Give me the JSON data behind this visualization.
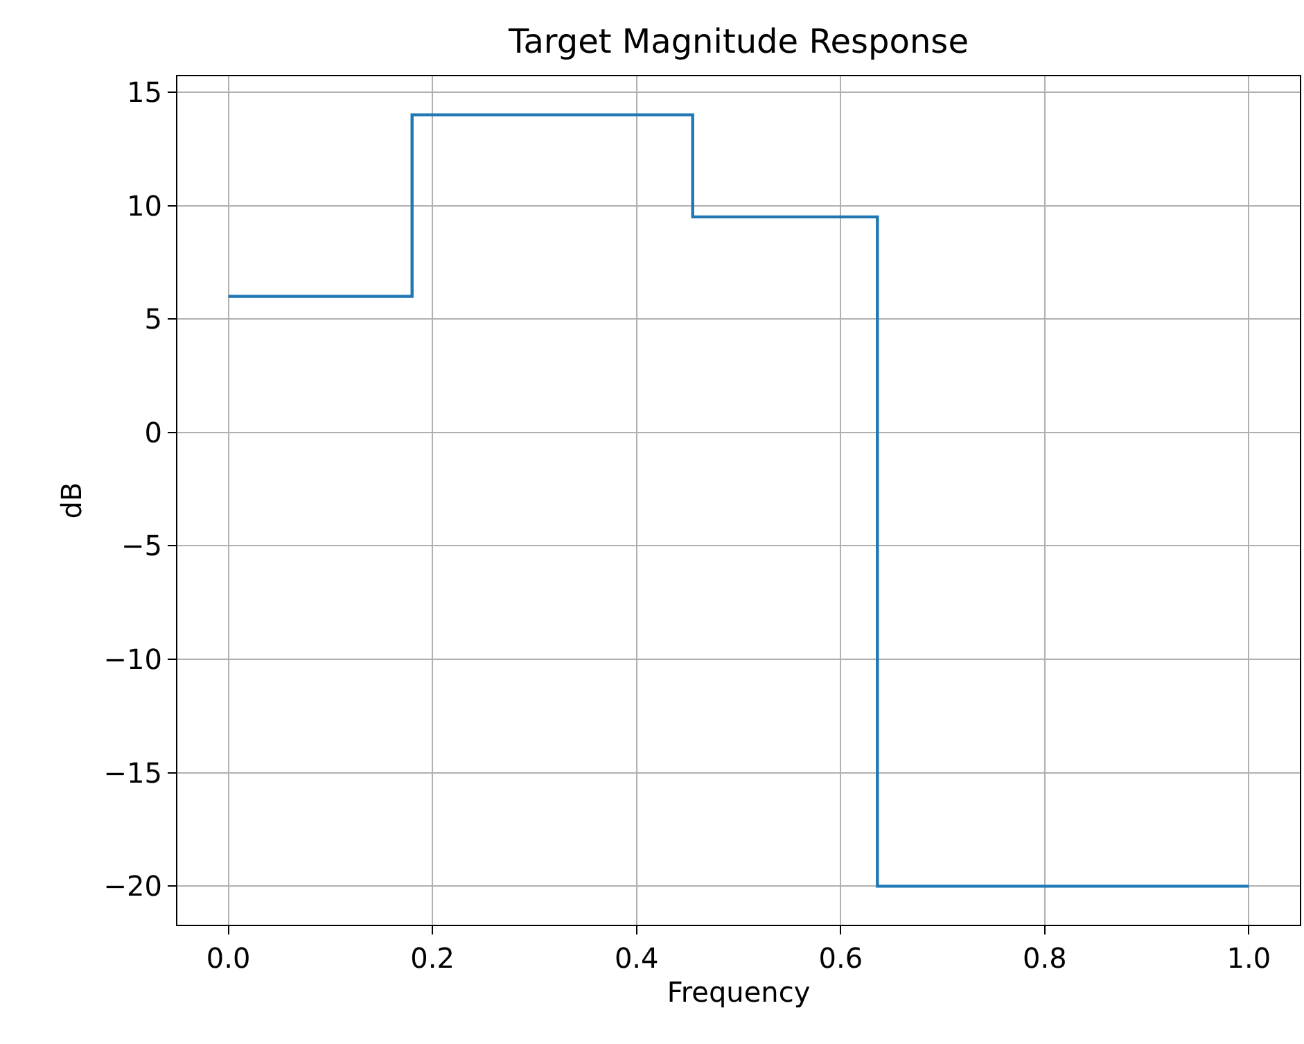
{
  "chart_data": {
    "type": "step",
    "title": "Target Magnitude Response",
    "xlabel": "Frequency",
    "ylabel": "dB",
    "x": [
      0,
      0.18,
      0.455,
      0.636,
      1.0
    ],
    "series": [
      {
        "color": "#1f77b4",
        "values": [
          6,
          14,
          9.5,
          -20,
          -20
        ]
      }
    ],
    "xlim": [
      -0.05,
      1.05
    ],
    "ylim": [
      -21.7,
      15.7
    ],
    "xticks": [
      {
        "value": 0,
        "label": "0.0"
      },
      {
        "value": 0.2,
        "label": "0.2"
      },
      {
        "value": 0.4,
        "label": "0.4"
      },
      {
        "value": 0.6,
        "label": "0.6"
      },
      {
        "value": 0.8,
        "label": "0.8"
      },
      {
        "value": 1.0,
        "label": "1.0"
      }
    ],
    "yticks": [
      {
        "value": -20,
        "label": "−20"
      },
      {
        "value": -15,
        "label": "−15"
      },
      {
        "value": -10,
        "label": "−10"
      },
      {
        "value": -5,
        "label": "−5"
      },
      0,
      5,
      10,
      15
    ],
    "grid": true,
    "line_style": "solid",
    "marker": "none"
  }
}
